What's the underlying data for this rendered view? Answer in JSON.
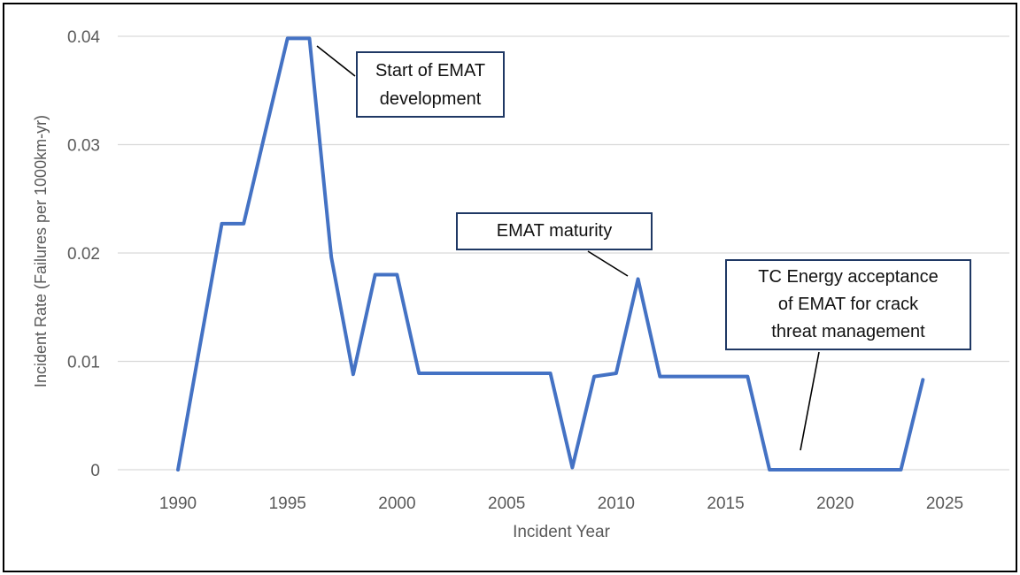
{
  "chart_data": {
    "type": "line",
    "title": "",
    "xlabel": "Incident Year",
    "ylabel": "Incident Rate (Failures per 1000km-yr)",
    "xlim": [
      1987,
      2028
    ],
    "ylim": [
      0,
      0.04
    ],
    "grid": "horizontal",
    "legend": "none",
    "x_ticks": [
      1990,
      1995,
      2000,
      2005,
      2010,
      2015,
      2020,
      2025
    ],
    "y_ticks": [
      0,
      0.01,
      0.02,
      0.03,
      0.04
    ],
    "y_tick_labels": [
      "0",
      "0.01",
      "0.02",
      "0.03",
      "0.04"
    ],
    "series": [
      {
        "name": "Incident Rate",
        "x": [
          1990,
          1991,
          1992,
          1993,
          1994,
          1995,
          1996,
          1997,
          1998,
          1999,
          2000,
          2001,
          2002,
          2003,
          2004,
          2005,
          2006,
          2007,
          2008,
          2009,
          2010,
          2011,
          2012,
          2013,
          2014,
          2015,
          2016,
          2017,
          2018,
          2019,
          2020,
          2021,
          2022,
          2023,
          2024
        ],
        "y": [
          0,
          0.0114,
          0.0227,
          0.0227,
          0.0313,
          0.0398,
          0.0398,
          0.0196,
          0.0088,
          0.018,
          0.018,
          0.0089,
          0.0089,
          0.0089,
          0.0089,
          0.0089,
          0.0089,
          0.0089,
          0.0002,
          0.0086,
          0.0089,
          0.0176,
          0.0086,
          0.0086,
          0.0086,
          0.0086,
          0.0086,
          0,
          0,
          0,
          0,
          0,
          0,
          0,
          0.0083
        ]
      }
    ],
    "annotations": [
      {
        "lines": [
          "Start of EMAT",
          "development"
        ],
        "points_to_year": 1996
      },
      {
        "lines": [
          "EMAT maturity"
        ],
        "points_to_year": 2011
      },
      {
        "lines": [
          "TC Energy acceptance",
          "of EMAT for crack",
          "threat management"
        ],
        "points_to_year": 2018
      }
    ]
  },
  "colors": {
    "line": "#4472C4",
    "grid": "#D9D9D9",
    "tick_text": "#595959",
    "annotation_border": "#1F3864",
    "leader": "#000000",
    "frame": "#000000"
  }
}
